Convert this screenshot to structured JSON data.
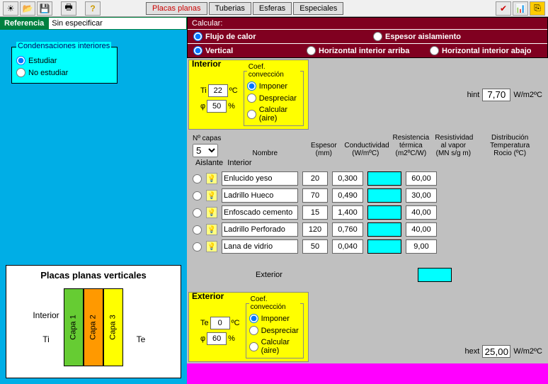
{
  "toolbar": {
    "tabs": [
      "Placas planas",
      "Tuberias",
      "Esferas",
      "Especiales"
    ]
  },
  "referencia": {
    "label": "Referencia",
    "value": "Sin especificar"
  },
  "condensaciones": {
    "legend": "Condensaciones interiores",
    "opt1": "Estudiar",
    "opt2": "No estudiar"
  },
  "diagram": {
    "title": "Placas planas verticales",
    "interior": "Interior",
    "ti": "Ti",
    "te": "Te",
    "layers": [
      "Capa 1",
      "Capa 2",
      "Capa 3"
    ],
    "colors": [
      "#66cc33",
      "#ff9900",
      "#ffff00"
    ]
  },
  "calcular": {
    "title": "Calcular:",
    "flujo": "Flujo de calor",
    "espesor": "Espesor aislamiento",
    "vertical": "Vertical",
    "harriba": "Horizontal interior arriba",
    "habajo": "Horizontal interior abajo"
  },
  "interior": {
    "label": "Interior",
    "ti": "Ti",
    "ti_val": "22",
    "ti_unit": "ºC",
    "phi_val": "50",
    "phi_unit": "%",
    "coef_legend": "Coef. convección",
    "imponer": "Imponer",
    "despreciar": "Despreciar",
    "calcaire": "Calcular (aire)",
    "hint_label": "hint",
    "hint_val": "7,70",
    "hint_unit": "W/m2ºC"
  },
  "headers": {
    "ncapas": "Nº capas",
    "nombre": "Nombre",
    "espesor": "Espesor",
    "espesor_u": "(mm)",
    "conduct": "Conductividad",
    "conduct_u": "(W/mºC)",
    "rest": "Resistencia",
    "rest2": "térmica",
    "rest_u": "(m2ºC/W)",
    "resv": "Resistividad",
    "resv2": "al vapor",
    "resv_u": "(MN s/g m)",
    "dist": "Distribución",
    "dist2": "Temperatura",
    "dist3": "Rocio (ºC)",
    "ncapas_val": "5",
    "aislante": "Aislante",
    "interior": "Interior",
    "exterior": "Exterior"
  },
  "rows": [
    {
      "nombre": "Enlucido yeso",
      "esp": "20",
      "cond": "0,300",
      "rv": "60,00"
    },
    {
      "nombre": "Ladrillo Hueco",
      "esp": "70",
      "cond": "0,490",
      "rv": "30,00"
    },
    {
      "nombre": "Enfoscado cemento",
      "esp": "15",
      "cond": "1,400",
      "rv": "40,00"
    },
    {
      "nombre": "Ladrillo Perforado",
      "esp": "120",
      "cond": "0,760",
      "rv": "40,00"
    },
    {
      "nombre": "Lana de vidrio",
      "esp": "50",
      "cond": "0,040",
      "rv": "9,00"
    }
  ],
  "exterior": {
    "label": "Exterior",
    "te": "Te",
    "te_val": "0",
    "te_unit": "ºC",
    "phi_val": "60",
    "phi_unit": "%",
    "hext_label": "hext",
    "hext_val": "25,00",
    "hext_unit": "W/m2ºC"
  }
}
